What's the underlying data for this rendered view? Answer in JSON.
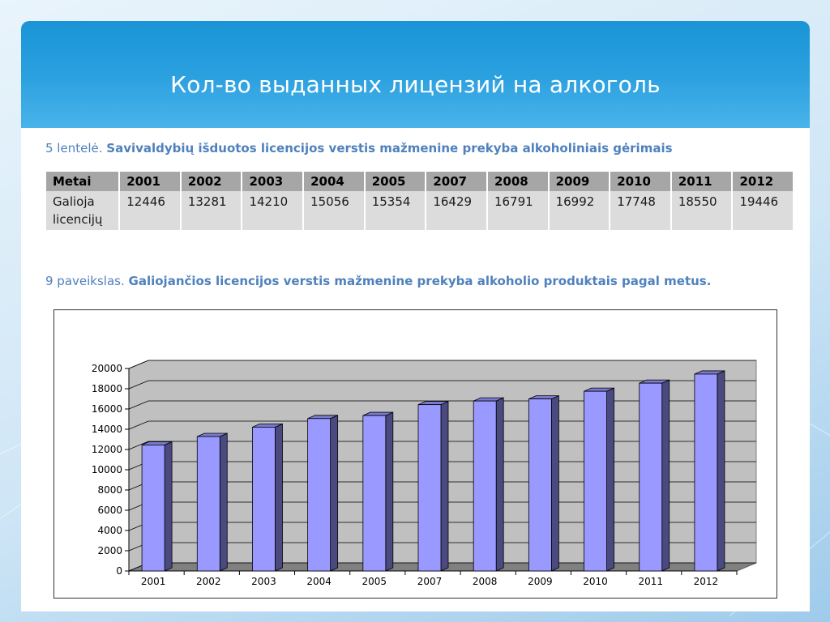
{
  "slide": {
    "title": "Кол-во выданных лицензий на алкоголь"
  },
  "table_caption": {
    "prefix": "5 lentelė.",
    "text": "Savivaldybių išduotos licencijos verstis mažmenine prekyba alkoholiniais gėrimais"
  },
  "table": {
    "header_label": "Metai",
    "years": [
      "2001",
      "2002",
      "2003",
      "2004",
      "2005",
      "2007",
      "2008",
      "2009",
      "2010",
      "2011",
      "2012"
    ],
    "row_label_line1": "Galioja",
    "row_label_line2": "licencijų",
    "values": [
      "12446",
      "13281",
      "14210",
      "15056",
      "15354",
      "16429",
      "16791",
      "16992",
      "17748",
      "18550",
      "19446"
    ]
  },
  "figure_caption": {
    "prefix": "9 paveikslas.",
    "text": "Galiojančios licencijos verstis mažmenine prekyba alkoholio produktais pagal metus."
  },
  "colors": {
    "bar_front": "#9999ff",
    "bar_side": "#4a4a80",
    "bar_top": "#7a7ad0",
    "wall": "#c0c0c0",
    "floor": "#808080",
    "accent_text": "#4f81bd"
  },
  "chart_data": {
    "type": "bar",
    "style": "3d",
    "categories": [
      "2001",
      "2002",
      "2003",
      "2004",
      "2005",
      "2007",
      "2008",
      "2009",
      "2010",
      "2011",
      "2012"
    ],
    "series": [
      {
        "values": [
          12446,
          13281,
          14210,
          15056,
          15354,
          16429,
          16791,
          16992,
          17748,
          18550,
          19446
        ]
      }
    ],
    "ylim": [
      0,
      20000
    ],
    "yticks": [
      0,
      2000,
      4000,
      6000,
      8000,
      10000,
      12000,
      14000,
      16000,
      18000,
      20000
    ],
    "grid": true,
    "legend": "none",
    "title": "",
    "xlabel": "",
    "ylabel": ""
  }
}
